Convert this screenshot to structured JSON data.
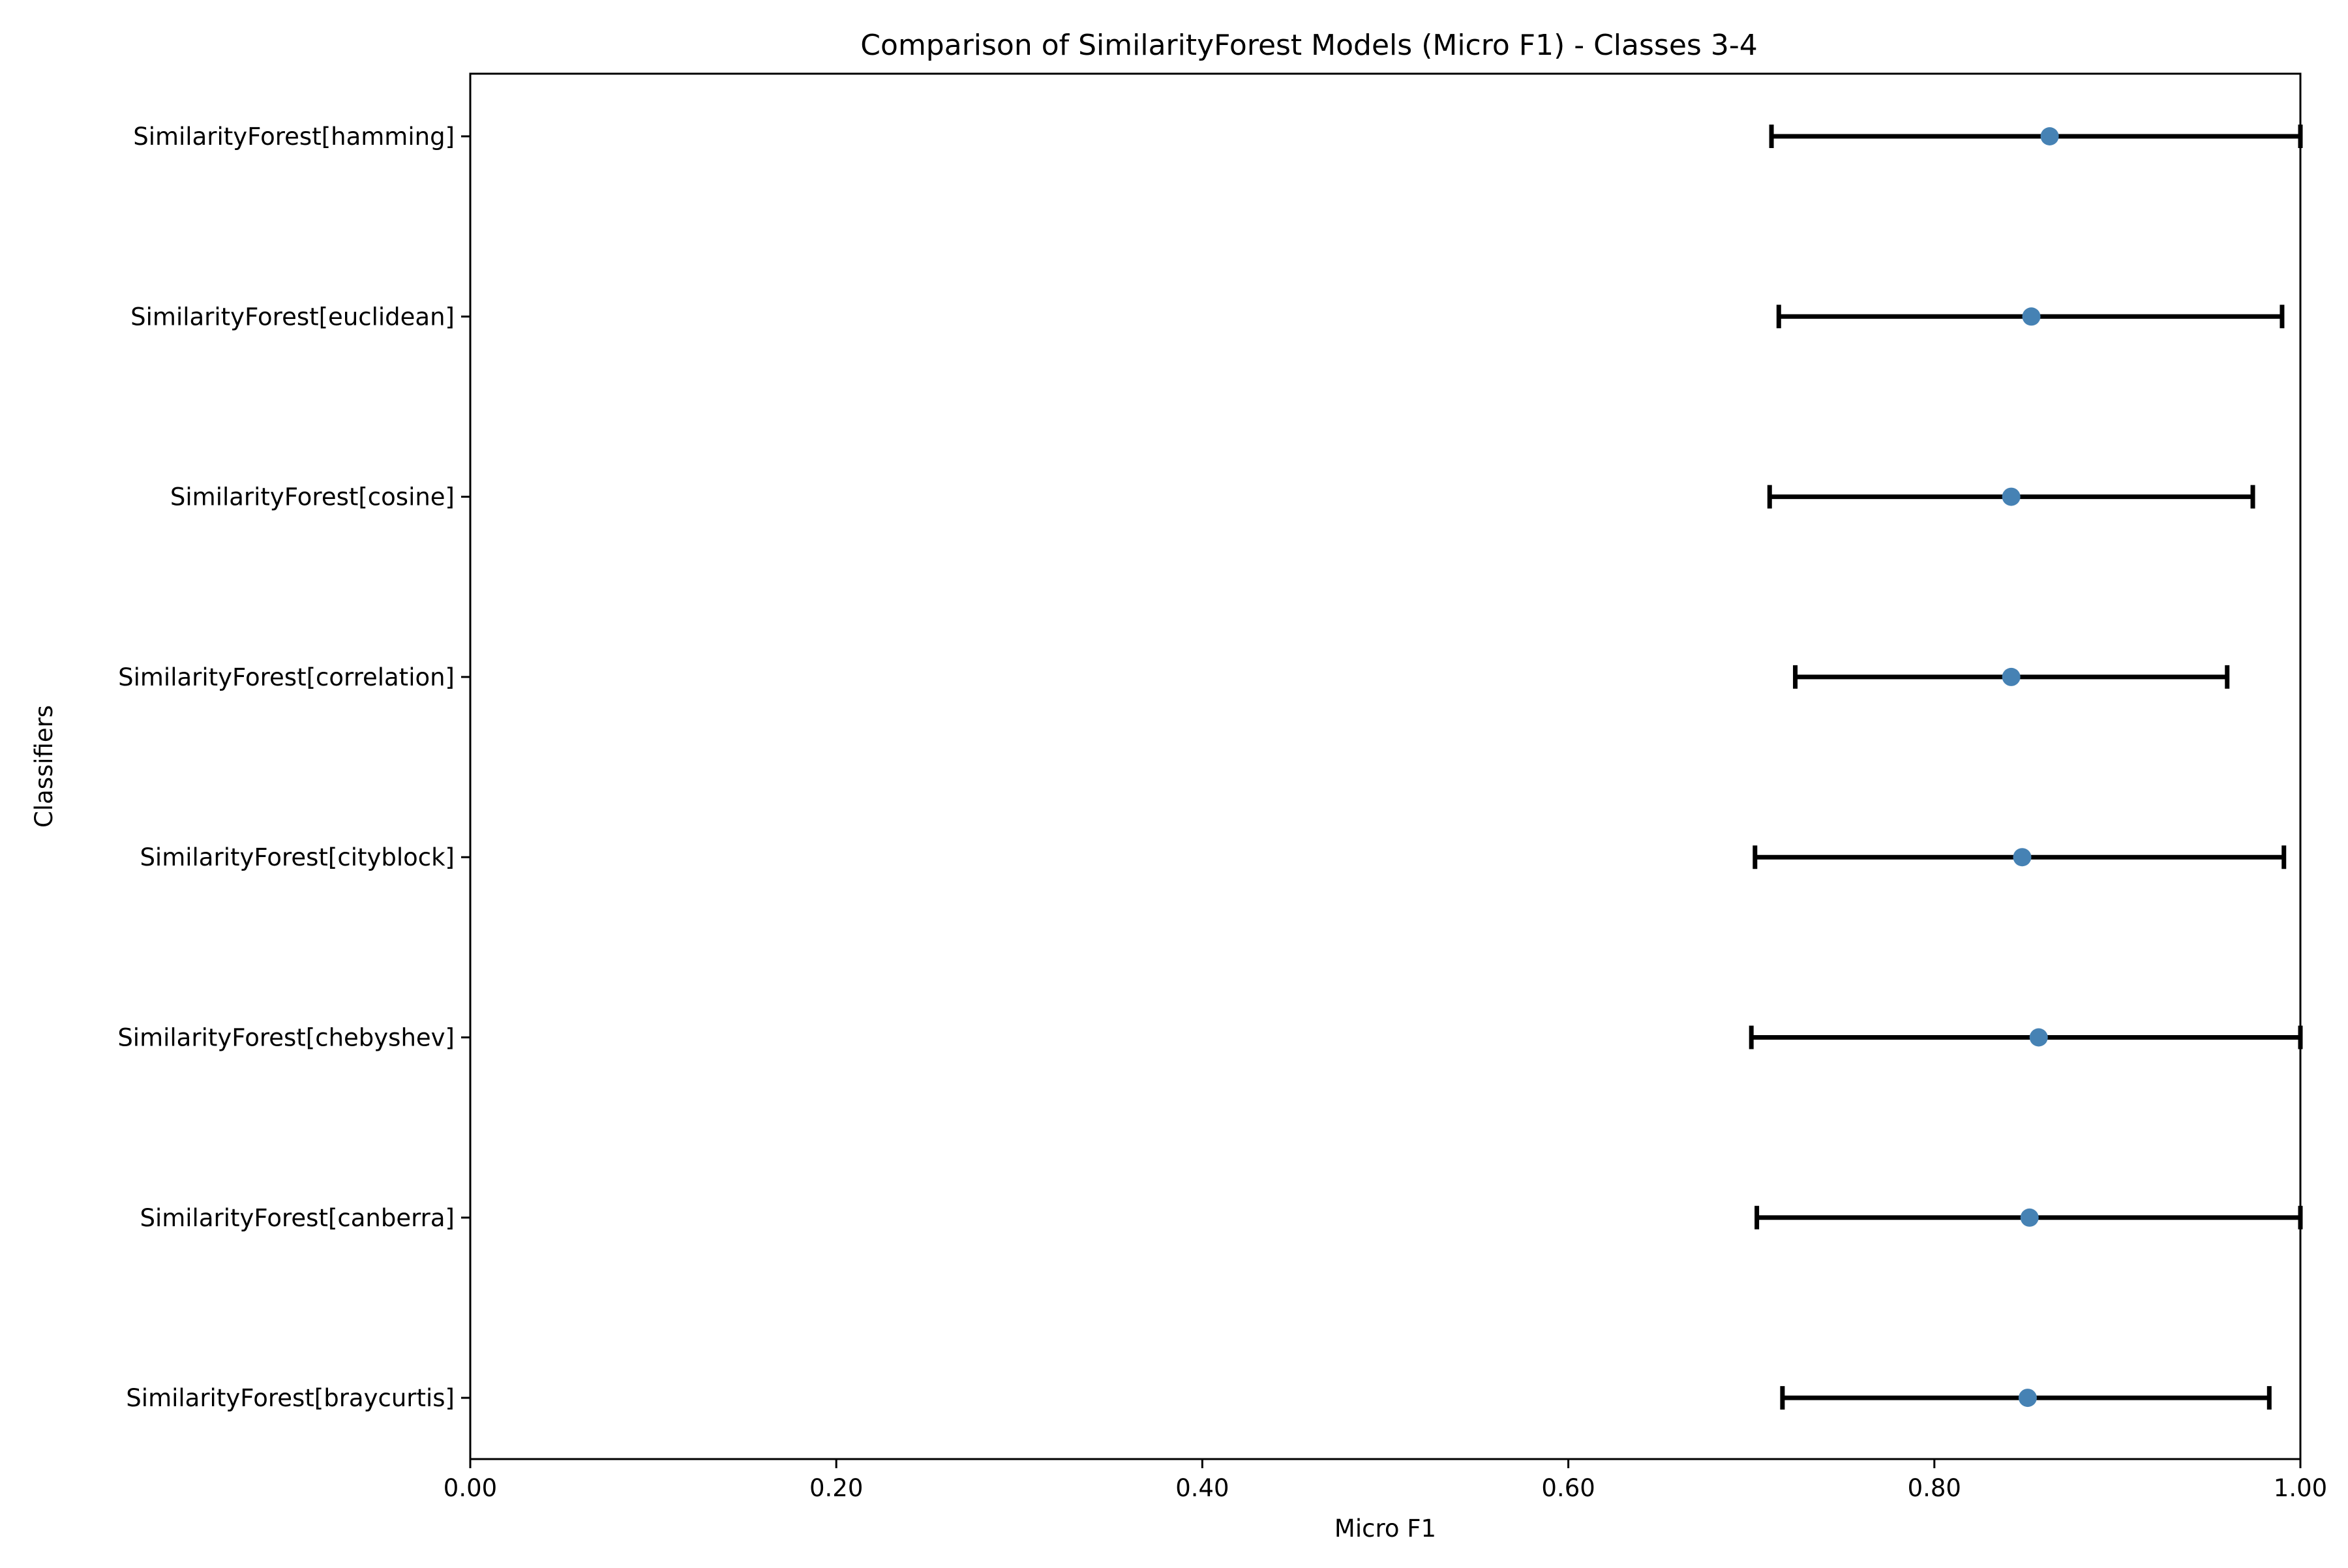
{
  "chart_data": {
    "type": "scatter",
    "title": "Comparison of SimilarityForest Models (Micro F1) - Classes 3-4",
    "xlabel": "Micro F1",
    "ylabel": "Classifiers",
    "xlim": [
      0.0,
      1.0
    ],
    "x_ticks": [
      "0.00",
      "0.20",
      "0.40",
      "0.60",
      "0.80",
      "1.00"
    ],
    "x_tick_values": [
      0.0,
      0.2,
      0.4,
      0.6,
      0.8,
      1.0
    ],
    "grid": false,
    "legend": "none",
    "marker_color": "#4682b4",
    "errorbar_color": "#000000",
    "categories": [
      "SimilarityForest[hamming]",
      "SimilarityForest[euclidean]",
      "SimilarityForest[cosine]",
      "SimilarityForest[correlation]",
      "SimilarityForest[cityblock]",
      "SimilarityForest[chebyshev]",
      "SimilarityForest[canberra]",
      "SimilarityForest[braycurtis]"
    ],
    "values": [
      0.863,
      0.853,
      0.842,
      0.842,
      0.848,
      0.857,
      0.852,
      0.851
    ],
    "error_low": [
      0.711,
      0.715,
      0.71,
      0.724,
      0.702,
      0.7,
      0.703,
      0.717
    ],
    "error_high": [
      1.0,
      0.99,
      0.974,
      0.96,
      0.991,
      1.0,
      1.0,
      0.983
    ]
  }
}
